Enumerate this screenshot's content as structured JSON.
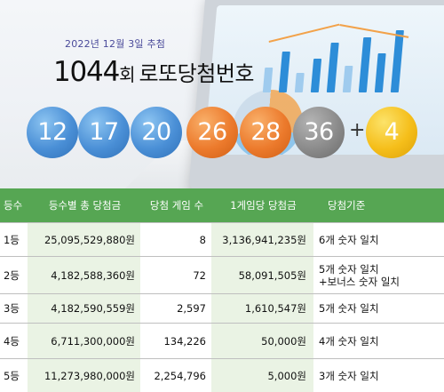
{
  "draw": {
    "date": "2022년 12월 3일 추첨",
    "round_number": "1044",
    "round_unit": "회",
    "title_rest": "로또당첨번호"
  },
  "balls": [
    {
      "number": "12",
      "color": "blue"
    },
    {
      "number": "17",
      "color": "blue"
    },
    {
      "number": "20",
      "color": "blue"
    },
    {
      "number": "26",
      "color": "orange"
    },
    {
      "number": "28",
      "color": "orange"
    },
    {
      "number": "36",
      "color": "gray"
    }
  ],
  "plus_sign": "+",
  "bonus_ball": {
    "number": "4",
    "color": "yellow"
  },
  "colors": {
    "blue": "#4a8fd6",
    "orange": "#ec7a2c",
    "gray": "#8b8b8b",
    "yellow": "#f5be1a",
    "header_green": "#56a653",
    "stripe_green": "#eaf3e4"
  },
  "table": {
    "headers": [
      "등수",
      "등수별 총 당첨금",
      "당첨 게임 수",
      "1게임당 당첨금",
      "당첨기준"
    ],
    "rows": [
      {
        "rank": "1등",
        "total": "25,095,529,880원",
        "games": "8",
        "per_game": "3,136,941,235원",
        "criteria": "6개 숫자 일치"
      },
      {
        "rank": "2등",
        "total": "4,182,588,360원",
        "games": "72",
        "per_game": "58,091,505원",
        "criteria": "5개 숫자 일치\n+보너스 숫자 일치"
      },
      {
        "rank": "3등",
        "total": "4,182,590,559원",
        "games": "2,597",
        "per_game": "1,610,547원",
        "criteria": "5개 숫자 일치"
      },
      {
        "rank": "4등",
        "total": "6,711,300,000원",
        "games": "134,226",
        "per_game": "50,000원",
        "criteria": "4개 숫자 일치"
      },
      {
        "rank": "5등",
        "total": "11,273,980,000원",
        "games": "2,254,796",
        "per_game": "5,000원",
        "criteria": "3개 숫자 일치"
      }
    ]
  }
}
